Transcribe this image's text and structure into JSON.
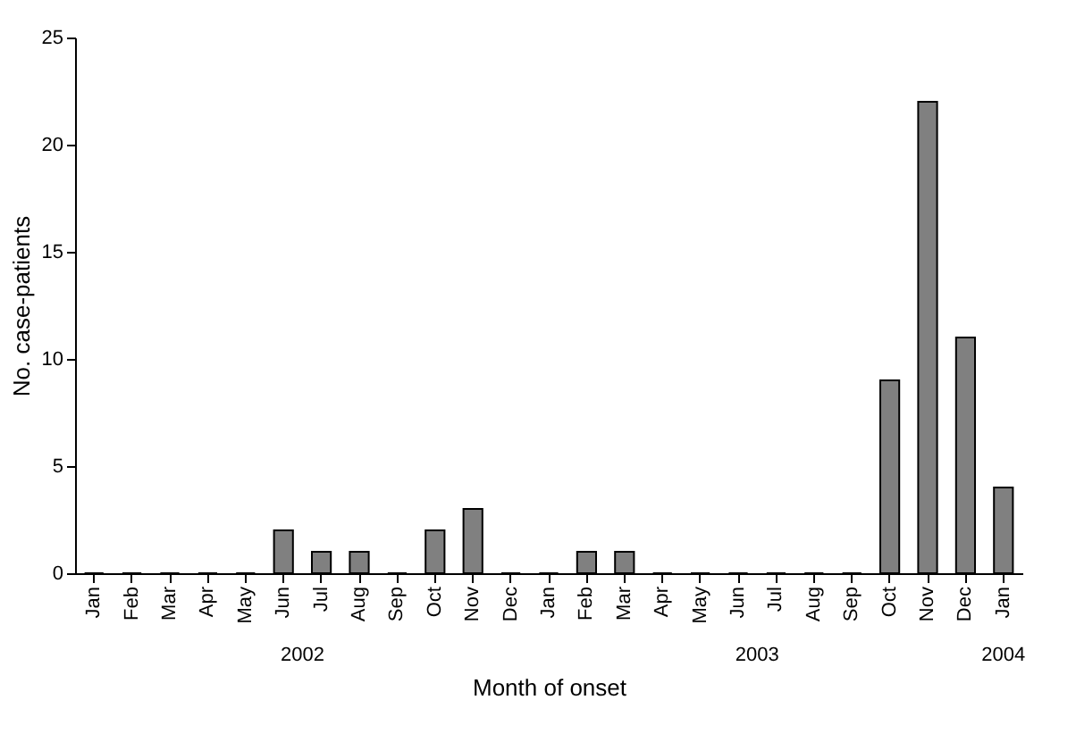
{
  "chart_data": {
    "type": "bar",
    "xlabel": "Month of onset",
    "ylabel": "No. case-patients",
    "categories": [
      "Jan",
      "Feb",
      "Mar",
      "Apr",
      "May",
      "Jun",
      "Jul",
      "Aug",
      "Sep",
      "Oct",
      "Nov",
      "Dec",
      "Jan",
      "Feb",
      "Mar",
      "Apr",
      "May",
      "Jun",
      "Jul",
      "Aug",
      "Sep",
      "Oct",
      "Nov",
      "Dec",
      "Jan"
    ],
    "values": [
      0,
      0,
      0,
      0,
      0,
      2,
      1,
      1,
      0,
      2,
      3,
      0,
      0,
      1,
      1,
      0,
      0,
      0,
      0,
      0,
      0,
      9,
      22,
      11,
      4
    ],
    "color": "#808080",
    "ylim": [
      0,
      25
    ],
    "yticks": [
      0,
      5,
      10,
      15,
      20,
      25
    ],
    "grid": false,
    "annotations": [
      "2002",
      "2003",
      "2004"
    ]
  }
}
